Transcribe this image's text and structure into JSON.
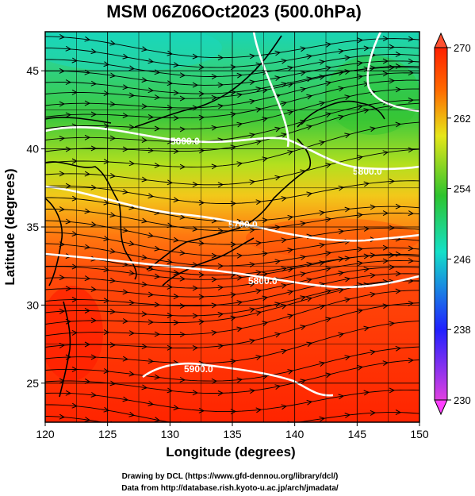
{
  "title": "MSM 06Z06Oct2023 (500.0hPa)",
  "xaxis": {
    "label": "Longitude (degrees)",
    "range": [
      120,
      150
    ],
    "ticks": [
      "120",
      "125",
      "130",
      "135",
      "140",
      "145",
      "150"
    ]
  },
  "yaxis": {
    "label": "Latitude  (degrees)",
    "range": [
      22.5,
      47.5
    ],
    "ticks": [
      "25",
      "30",
      "35",
      "40",
      "45"
    ]
  },
  "colorbar": {
    "range": [
      230,
      270
    ],
    "ticks": [
      "230",
      "238",
      "246",
      "254",
      "262",
      "270"
    ]
  },
  "contours": [
    {
      "label": "5600.0"
    },
    {
      "label": "5700.0"
    },
    {
      "label": "5800.0"
    },
    {
      "label": "5800.0"
    },
    {
      "label": "5900.0"
    }
  ],
  "credits": {
    "line1": "Drawing by DCL (https://www.gfd-dennou.org/library/dcl/)",
    "line2": "Data from http://database.rish.kyoto-u.ac.jp/arch/jmadata/"
  },
  "colors": {
    "colormap": [
      "#e040e0",
      "#1a1aff",
      "#14e0c8",
      "#2ec42e",
      "#e6e619",
      "#ff6a00",
      "#ff1a00"
    ]
  }
}
